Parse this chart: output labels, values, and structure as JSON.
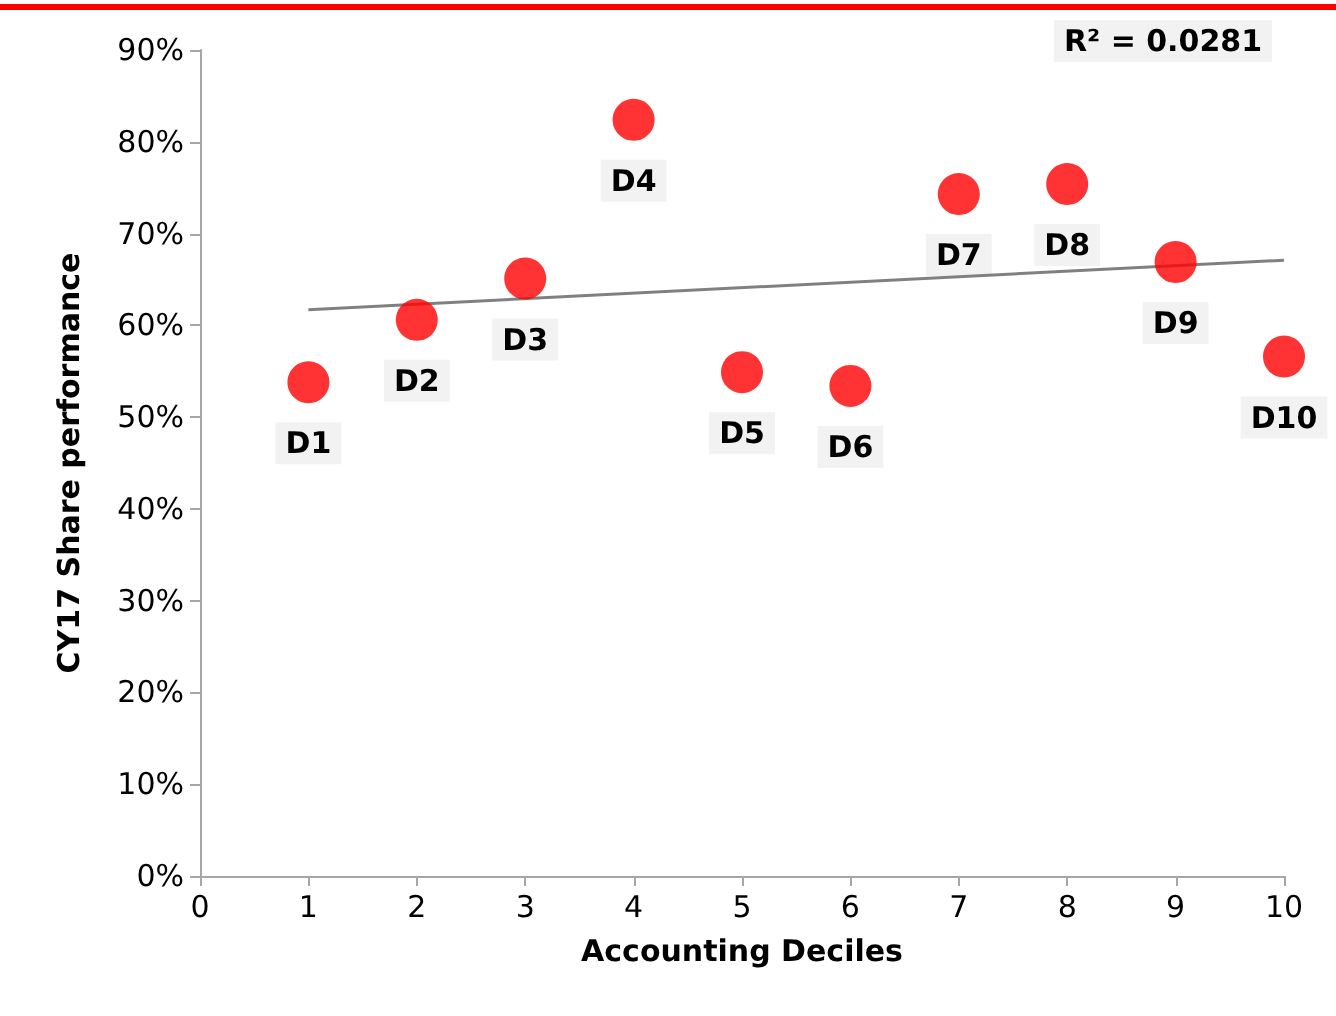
{
  "chart_data": {
    "type": "scatter",
    "xlabel": "Accounting Deciles",
    "ylabel": "CY17 Share performance",
    "x": [
      1,
      2,
      3,
      4,
      5,
      6,
      7,
      8,
      9,
      10
    ],
    "series": [
      {
        "color": "#ff0000",
        "values": [
          53.8,
          60.6,
          65.1,
          82.4,
          54.9,
          53.4,
          74.3,
          75.4,
          66.9,
          56.6
        ],
        "marker": "circle"
      },
      {
        "type": "line",
        "color": "#808080",
        "x": [
          1,
          10
        ],
        "values": [
          61.7,
          67.1
        ],
        "marker": "none",
        "line_style": "solid"
      }
    ],
    "xlim": [
      0,
      10
    ],
    "xticks": [
      0,
      1,
      2,
      3,
      4,
      5,
      6,
      7,
      8,
      9,
      10
    ],
    "ylim": [
      0,
      90
    ],
    "yticks": [
      {
        "value": 0,
        "label": "0%"
      },
      {
        "value": 10,
        "label": "10%"
      },
      {
        "value": 20,
        "label": "20%"
      },
      {
        "value": 30,
        "label": "30%"
      },
      {
        "value": 40,
        "label": "40%"
      },
      {
        "value": 50,
        "label": "50%"
      },
      {
        "value": 60,
        "label": "60%"
      },
      {
        "value": 70,
        "label": "70%"
      },
      {
        "value": 80,
        "label": "80%"
      },
      {
        "value": 90,
        "label": "90%"
      }
    ],
    "annotations": [
      "R² = 0.0281",
      {
        "text": "D1",
        "x": 1,
        "y": 53.8
      },
      {
        "text": "D2",
        "x": 2,
        "y": 60.6
      },
      {
        "text": "D3",
        "x": 3,
        "y": 65.1
      },
      {
        "text": "D4",
        "x": 4,
        "y": 82.4
      },
      {
        "text": "D5",
        "x": 5,
        "y": 54.9
      },
      {
        "text": "D6",
        "x": 6,
        "y": 53.4
      },
      {
        "text": "D7",
        "x": 7,
        "y": 74.3
      },
      {
        "text": "D8",
        "x": 8,
        "y": 75.4
      },
      {
        "text": "D9",
        "x": 9,
        "y": 66.9
      },
      {
        "text": "D10",
        "x": 10,
        "y": 56.6
      }
    ]
  }
}
